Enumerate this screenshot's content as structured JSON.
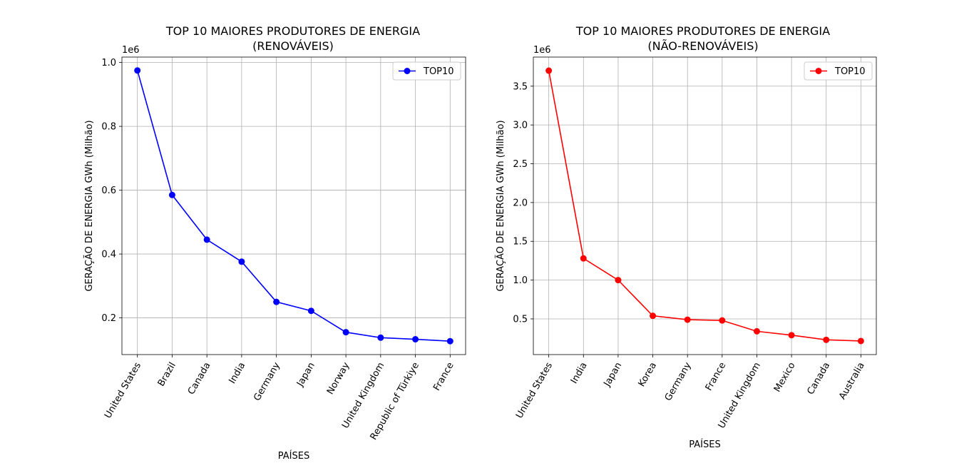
{
  "chart_data": [
    {
      "type": "line",
      "title_line1": "TOP 10 MAIORES PRODUTORES DE ENERGIA",
      "title_line2": "(RENOVÁVEIS)",
      "xlabel": "PAÍSES",
      "ylabel": "GERAÇÃO DE ENERGIA GWh (Milhão)",
      "offset_text": "1e6",
      "categories": [
        "United States",
        "Brazil",
        "Canada",
        "India",
        "Germany",
        "Japan",
        "Norway",
        "United Kingdom",
        "Republic of Türkiye",
        "France"
      ],
      "series": [
        {
          "name": "TOP10",
          "values": [
            975000,
            585000,
            445000,
            376000,
            250000,
            222000,
            155000,
            138000,
            133000,
            127000
          ]
        }
      ],
      "ylim": [
        85000,
        1017000
      ],
      "yticks": [
        200000,
        400000,
        600000,
        800000,
        1000000
      ],
      "ytick_labels": [
        "0.2",
        "0.4",
        "0.6",
        "0.8",
        "1.0"
      ],
      "grid": true,
      "legend": "top-right",
      "color": "#0000ff"
    },
    {
      "type": "line",
      "title_line1": "TOP 10 MAIORES PRODUTORES DE ENERGIA",
      "title_line2": "(NÃO-RENOVÁVEIS)",
      "xlabel": "PAÍSES",
      "ylabel": "GERAÇÃO DE ENERGIA GWh (Milhão)",
      "offset_text": "1e6",
      "categories": [
        "United States",
        "India",
        "Japan",
        "Korea",
        "Germany",
        "France",
        "United Kingdom",
        "Mexico",
        "Canada",
        "Australia"
      ],
      "series": [
        {
          "name": "TOP10",
          "values": [
            3700000,
            1280000,
            1000000,
            540000,
            490000,
            480000,
            340000,
            290000,
            230000,
            215000
          ]
        }
      ],
      "ylim": [
        40000,
        3875000
      ],
      "yticks": [
        500000,
        1000000,
        1500000,
        2000000,
        2500000,
        3000000,
        3500000
      ],
      "ytick_labels": [
        "0.5",
        "1.0",
        "1.5",
        "2.0",
        "2.5",
        "3.0",
        "3.5"
      ],
      "grid": true,
      "legend": "top-right",
      "color": "#ff0000"
    }
  ]
}
